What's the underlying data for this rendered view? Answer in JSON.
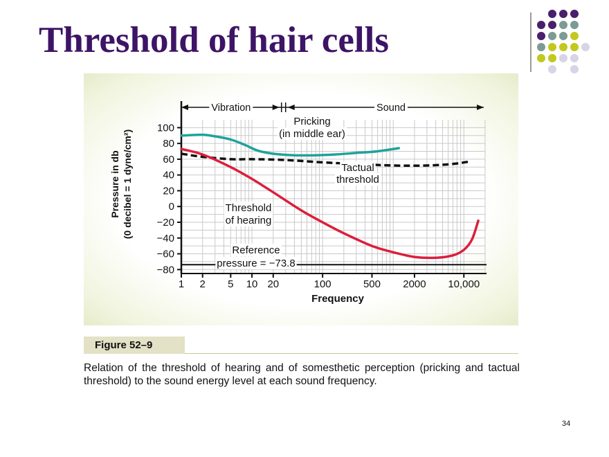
{
  "slide": {
    "title": "Threshold of hair cells",
    "page_number": "34"
  },
  "decoration": {
    "dot_grid": [
      [
        "",
        "#4a1f6b",
        "#4a1f6b",
        "#4a1f6b",
        ""
      ],
      [
        "#4a1f6b",
        "#4a1f6b",
        "#7d9b95",
        "#7d9b95",
        ""
      ],
      [
        "#4a1f6b",
        "#7d9b95",
        "#7d9b95",
        "#c2c81e",
        ""
      ],
      [
        "#7d9b95",
        "#c2c81e",
        "#c2c81e",
        "#c2c81e",
        "#d6d4e6"
      ],
      [
        "#c2c81e",
        "#c2c81e",
        "#d6d4e6",
        "#d6d4e6",
        ""
      ],
      [
        "",
        "#d6d4e6",
        "",
        "#d6d4e6",
        ""
      ]
    ]
  },
  "figure": {
    "label": "Figure 52–9",
    "caption": "Relation of the threshold of hearing and of somesthetic perception (pricking and tactual threshold) to the sound energy level at each sound frequency."
  },
  "chart_data": {
    "type": "line",
    "x_scale": "log",
    "xlabel": "Frequency",
    "ylabel_lines": [
      "Pressure in db",
      "(0 decibel = 1 dyne/cm²)"
    ],
    "xlim": [
      1,
      20000
    ],
    "ylim": [
      -85,
      110
    ],
    "x_ticks": [
      1,
      2,
      5,
      10,
      20,
      100,
      500,
      2000,
      10000
    ],
    "x_tick_labels": [
      "1",
      "2",
      "5",
      "10",
      "20",
      "100",
      "500",
      "2000",
      "10,000"
    ],
    "y_ticks": [
      100,
      80,
      60,
      40,
      20,
      0,
      -20,
      -40,
      -60,
      -80
    ],
    "y_tick_labels": [
      "100",
      "80",
      "60",
      "40",
      "20",
      "0",
      "−20",
      "−40",
      "−60",
      "−80"
    ],
    "grid": true,
    "ranges": [
      {
        "label": "Vibration",
        "from": 1,
        "to": 28
      },
      {
        "label": "Sound",
        "from": 28,
        "to": 20000
      }
    ],
    "series": [
      {
        "name": "Pricking (in middle ear)",
        "color": "#1fa39a",
        "style": "solid",
        "x": [
          1,
          2,
          3,
          5,
          8,
          12,
          20,
          40,
          80,
          150,
          300,
          600,
          1200
        ],
        "y": [
          90,
          91,
          89,
          85,
          78,
          71,
          67,
          65,
          65,
          66,
          68,
          70,
          74
        ]
      },
      {
        "name": "Tactual threshold",
        "color": "#111111",
        "style": "dashed",
        "x": [
          1,
          2,
          5,
          10,
          30,
          100,
          300,
          1000,
          3000,
          7000,
          12000
        ],
        "y": [
          67,
          63,
          60,
          60,
          59,
          56,
          54,
          52,
          52,
          54,
          57
        ]
      },
      {
        "name": "Threshold of hearing",
        "color": "#dc1e3c",
        "style": "solid",
        "x": [
          1,
          2,
          5,
          10,
          20,
          50,
          100,
          200,
          500,
          1000,
          2000,
          4000,
          7000,
          10000,
          13000,
          16000
        ],
        "y": [
          73,
          66,
          50,
          35,
          18,
          -5,
          -20,
          -34,
          -50,
          -58,
          -64,
          -65,
          -62,
          -55,
          -42,
          -18
        ]
      }
    ],
    "reference": {
      "label_lines": [
        "Reference",
        "pressure = −73.8"
      ],
      "y": -73.8
    },
    "annotations": [
      {
        "lines": [
          "Pricking",
          "(in middle ear)"
        ]
      },
      {
        "lines": [
          "Tactual",
          "threshold"
        ]
      },
      {
        "lines": [
          "Threshold",
          "of hearing"
        ]
      }
    ]
  }
}
